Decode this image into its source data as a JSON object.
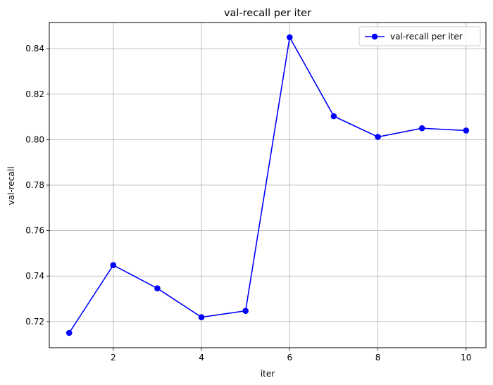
{
  "chart_data": {
    "type": "line",
    "title": "val-recall per iter",
    "xlabel": "iter",
    "ylabel": "val-recall",
    "xlim": [
      0.55,
      10.45
    ],
    "ylim": [
      0.7085,
      0.8515
    ],
    "xticks": [
      2,
      4,
      6,
      8,
      10
    ],
    "yticks": [
      0.72,
      0.74,
      0.76,
      0.78,
      0.8,
      0.82,
      0.84
    ],
    "xtick_labels": [
      "2",
      "4",
      "6",
      "8",
      "10"
    ],
    "ytick_labels": [
      "0.72",
      "0.74",
      "0.76",
      "0.78",
      "0.80",
      "0.82",
      "0.84"
    ],
    "grid": true,
    "legend_position": "top-right",
    "series": [
      {
        "name": "val-recall per iter",
        "color": "#0000ff",
        "marker": "circle",
        "x": [
          1,
          2,
          3,
          4,
          5,
          6,
          7,
          8,
          9,
          10
        ],
        "y": [
          0.715,
          0.7448,
          0.7346,
          0.7219,
          0.7247,
          0.845,
          0.8103,
          0.8012,
          0.805,
          0.804
        ]
      }
    ]
  }
}
